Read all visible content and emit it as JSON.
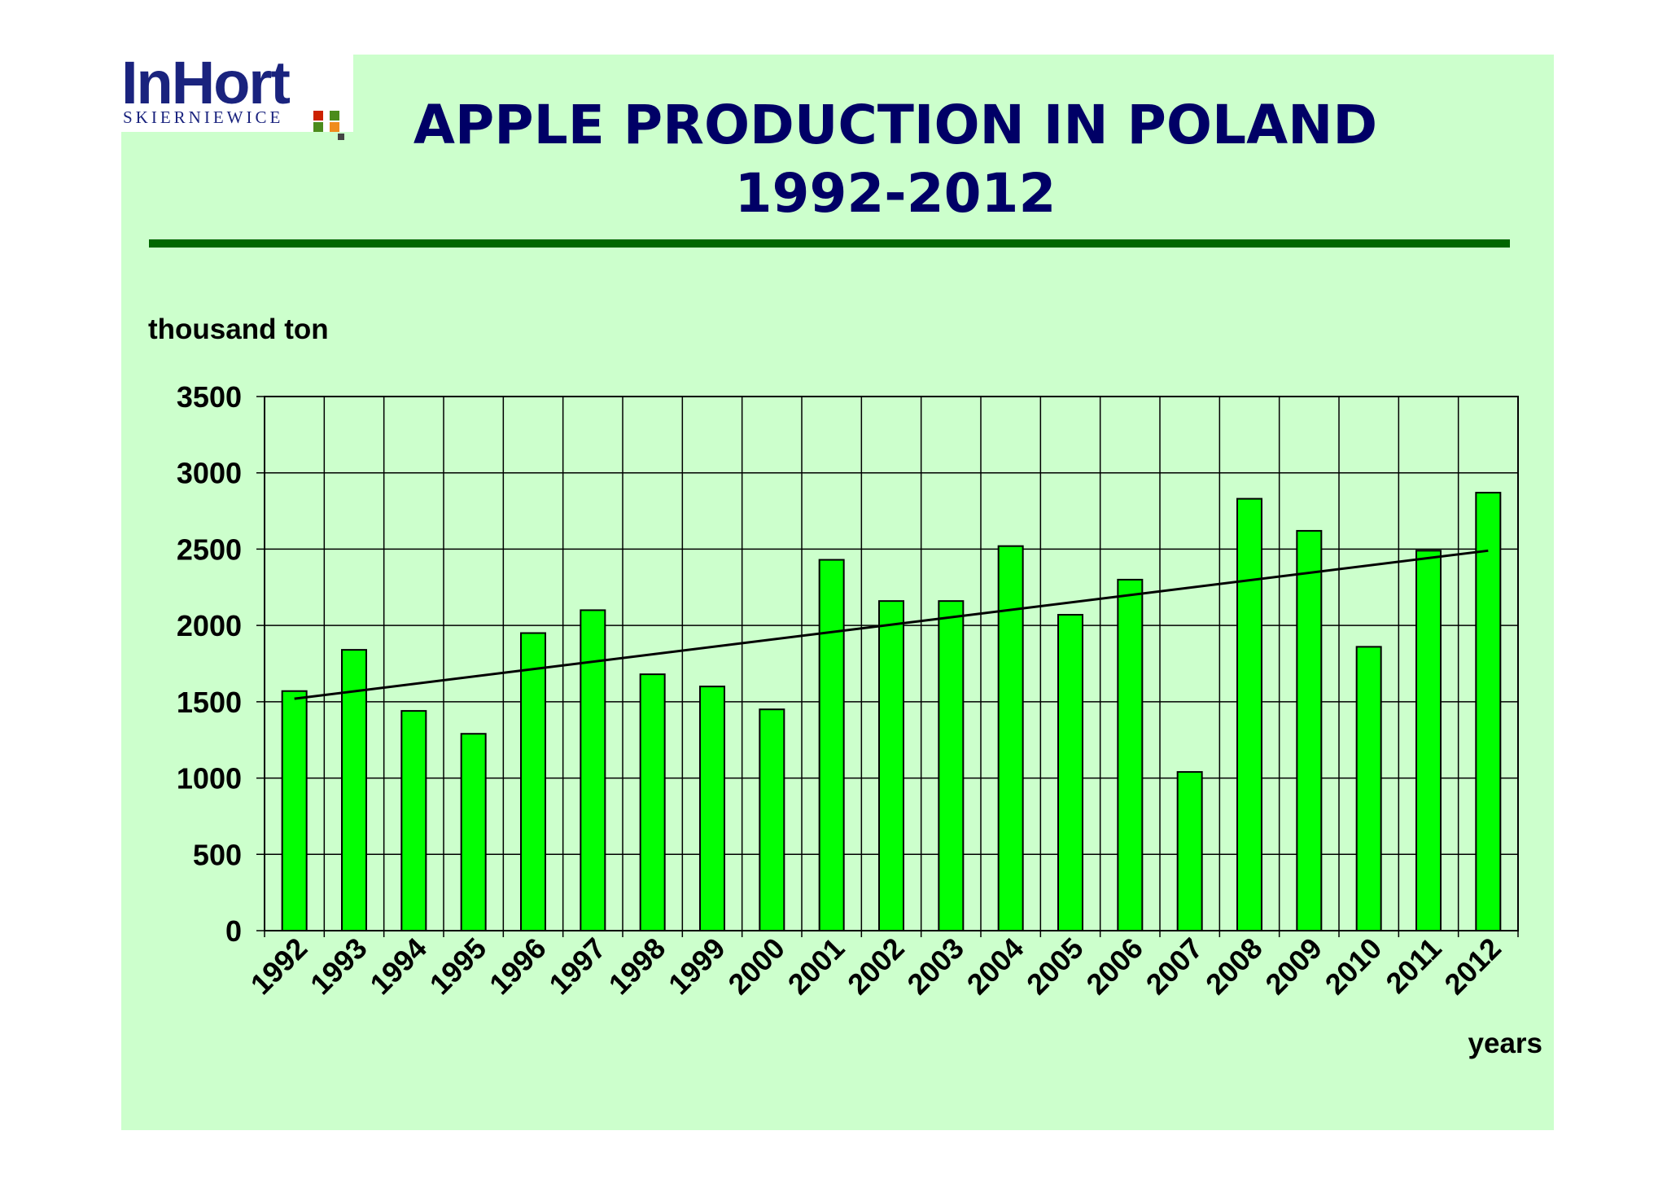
{
  "logo": {
    "name": "InHort",
    "city": "SKIERNIEWICE"
  },
  "header": {
    "title_line1": "APPLE  PRODUCTION  IN  POLAND",
    "title_line2": "1992-2012"
  },
  "colors": {
    "background": "#ccffcc",
    "bar_fill": "#00ff00",
    "bar_stroke": "#000000",
    "rule": "#006600",
    "title": "#000066"
  },
  "chart_data": {
    "type": "bar",
    "ylabel": "thousand ton",
    "xlabel": "years",
    "categories": [
      "1992",
      "1993",
      "1994",
      "1995",
      "1996",
      "1997",
      "1998",
      "1999",
      "2000",
      "2001",
      "2002",
      "2003",
      "2004",
      "2005",
      "2006",
      "2007",
      "2008",
      "2009",
      "2010",
      "2011",
      "2012"
    ],
    "values": [
      1570,
      1840,
      1440,
      1290,
      1950,
      2100,
      1680,
      1600,
      1450,
      2430,
      2160,
      2160,
      2520,
      2070,
      2300,
      1040,
      2830,
      2620,
      1860,
      2490,
      2870
    ],
    "yticks": [
      "0",
      "500",
      "1000",
      "1500",
      "2000",
      "2500",
      "3000",
      "3500"
    ],
    "ylim": [
      0,
      3500
    ],
    "grid": true,
    "trendline": {
      "type": "linear",
      "start": 1520,
      "end": 2490
    }
  }
}
